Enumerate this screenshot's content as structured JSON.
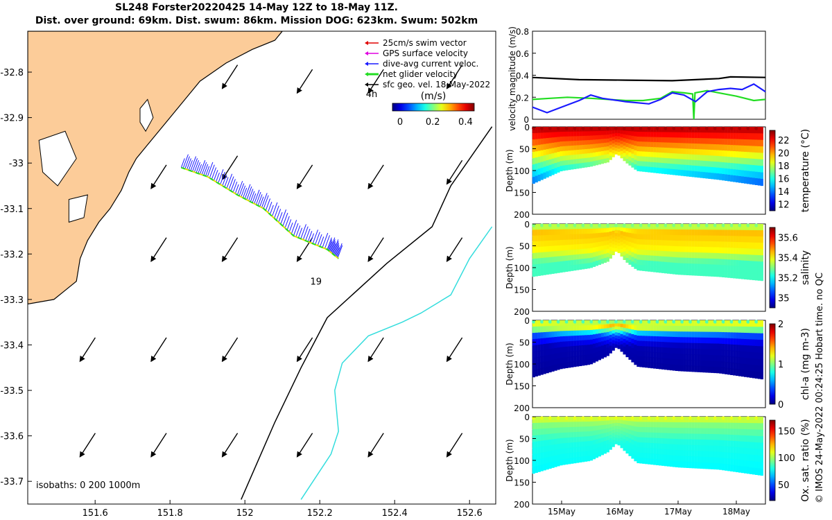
{
  "header": {
    "line1": "SL248 Forster20220425 14-May 12Z to 18-May 11Z.",
    "line2": "Dist. over ground: 69km. Dist. swum: 86km. Mission DOG: 623km. Swum: 502km"
  },
  "chart_data": [
    {
      "type": "map",
      "name": "glider track map",
      "xlim": [
        151.42,
        152.67
      ],
      "ylim": [
        -33.75,
        -32.71
      ],
      "xticks": [
        "151.6",
        "151.8",
        "152",
        "152.2",
        "152.4",
        "152.6"
      ],
      "yticks": [
        "-32.8",
        "-32.9",
        "-33",
        "-33.1",
        "-33.2",
        "-33.3",
        "-33.4",
        "-33.5",
        "-33.6",
        "-33.7"
      ],
      "legend": [
        "25cm/s swim vector",
        "GPS surface velocity",
        "dive-avg current veloc.",
        "net glider velocity",
        "sfc geo. vel. 18-May-2022"
      ],
      "legend_colors": [
        "#e00000",
        "#e000e0",
        "#1a1aff",
        "#22dd22",
        "#000000"
      ],
      "colorbar": {
        "label": "(m/s)",
        "ticks": [
          "0",
          "0.2",
          "0.4"
        ],
        "range": [
          0,
          0.5
        ]
      },
      "annotations": {
        "time_label": "4h",
        "day_label": "19",
        "isobaths": "isobaths: 0   200  1000m"
      },
      "land_color": "#fccc99",
      "track": [
        [
          151.83,
          -33.01
        ],
        [
          151.9,
          -33.03
        ],
        [
          151.98,
          -33.07
        ],
        [
          152.05,
          -33.1
        ],
        [
          152.13,
          -33.16
        ],
        [
          152.22,
          -33.19
        ],
        [
          152.25,
          -33.21
        ]
      ],
      "isobath_200m": [
        [
          152.66,
          -32.92
        ],
        [
          152.55,
          -33.05
        ],
        [
          152.5,
          -33.14
        ],
        [
          152.38,
          -33.22
        ],
        [
          152.22,
          -33.34
        ],
        [
          152.15,
          -33.45
        ],
        [
          152.08,
          -33.57
        ],
        [
          151.99,
          -33.74
        ]
      ],
      "isobath_1000m": [
        [
          152.66,
          -33.14
        ],
        [
          152.6,
          -33.21
        ],
        [
          152.55,
          -33.29
        ],
        [
          152.47,
          -33.33
        ],
        [
          152.42,
          -33.35
        ],
        [
          152.33,
          -33.38
        ],
        [
          152.26,
          -33.44
        ],
        [
          152.24,
          -33.5
        ],
        [
          152.25,
          -33.59
        ],
        [
          152.23,
          -33.64
        ],
        [
          152.19,
          -33.69
        ],
        [
          152.15,
          -33.74
        ]
      ],
      "sfc_vectors": [
        [
          151.96,
          -32.81
        ],
        [
          152.16,
          -32.82
        ],
        [
          152.35,
          -32.82
        ],
        [
          152.56,
          -32.81
        ],
        [
          151.77,
          -33.03
        ],
        [
          151.96,
          -33.01
        ],
        [
          152.16,
          -33.03
        ],
        [
          152.35,
          -33.03
        ],
        [
          152.56,
          -33.02
        ],
        [
          151.77,
          -33.19
        ],
        [
          151.96,
          -33.19
        ],
        [
          152.16,
          -33.19
        ],
        [
          152.35,
          -33.19
        ],
        [
          152.56,
          -33.19
        ],
        [
          151.58,
          -33.41
        ],
        [
          151.77,
          -33.41
        ],
        [
          151.96,
          -33.41
        ],
        [
          152.16,
          -33.41
        ],
        [
          152.35,
          -33.41
        ],
        [
          152.56,
          -33.41
        ],
        [
          151.58,
          -33.62
        ],
        [
          151.77,
          -33.62
        ],
        [
          151.96,
          -33.62
        ],
        [
          152.16,
          -33.62
        ],
        [
          152.35,
          -33.62
        ],
        [
          152.56,
          -33.62
        ]
      ]
    },
    {
      "type": "line",
      "name": "velocity magnitude",
      "ylabel": "velocity magnitude (m/s)",
      "ylim": [
        0,
        0.8
      ],
      "yticks": [
        "0",
        "0.2",
        "0.4",
        "0.6",
        "0.8"
      ],
      "series": [
        {
          "name": "sfc geo. vel.",
          "color": "#000000",
          "values": [
            [
              0,
              0.38
            ],
            [
              0.8,
              0.36
            ],
            [
              1.6,
              0.355
            ],
            [
              2.4,
              0.35
            ],
            [
              3.2,
              0.37
            ],
            [
              3.4,
              0.385
            ],
            [
              4.0,
              0.38
            ]
          ]
        },
        {
          "name": "net glider velocity",
          "color": "#22dd22",
          "values": [
            [
              0,
              0.18
            ],
            [
              0.3,
              0.19
            ],
            [
              0.6,
              0.2
            ],
            [
              1.0,
              0.19
            ],
            [
              1.3,
              0.18
            ],
            [
              1.6,
              0.17
            ],
            [
              1.9,
              0.17
            ],
            [
              2.2,
              0.19
            ],
            [
              2.4,
              0.25
            ],
            [
              2.6,
              0.24
            ],
            [
              2.75,
              0.23
            ],
            [
              2.77,
              0.0
            ],
            [
              2.79,
              0.24
            ],
            [
              3.0,
              0.26
            ],
            [
              3.2,
              0.24
            ],
            [
              3.5,
              0.21
            ],
            [
              3.8,
              0.17
            ],
            [
              4.0,
              0.18
            ]
          ]
        },
        {
          "name": "dive-avg current veloc.",
          "color": "#1a1aff",
          "values": [
            [
              0,
              0.11
            ],
            [
              0.25,
              0.06
            ],
            [
              0.5,
              0.11
            ],
            [
              0.8,
              0.17
            ],
            [
              1.0,
              0.22
            ],
            [
              1.2,
              0.19
            ],
            [
              1.6,
              0.16
            ],
            [
              2.0,
              0.14
            ],
            [
              2.2,
              0.18
            ],
            [
              2.4,
              0.24
            ],
            [
              2.6,
              0.22
            ],
            [
              2.8,
              0.16
            ],
            [
              3.0,
              0.25
            ],
            [
              3.2,
              0.27
            ],
            [
              3.4,
              0.28
            ],
            [
              3.6,
              0.27
            ],
            [
              3.8,
              0.32
            ],
            [
              4.0,
              0.25
            ]
          ]
        }
      ]
    },
    {
      "type": "heatmap",
      "name": "temperature section",
      "ylabel": "Depth (m)",
      "ylim": [
        0,
        200
      ],
      "yticks": [
        "0",
        "50",
        "100",
        "150",
        "200"
      ],
      "colorbar_label": "temperature (°C)",
      "crange": [
        11,
        23.5
      ],
      "colorbar_ticks": [
        "12",
        "14",
        "16",
        "18",
        "20",
        "22"
      ],
      "profile_depth": [
        [
          0,
          130
        ],
        [
          0.5,
          100
        ],
        [
          1.0,
          90
        ],
        [
          1.3,
          80
        ],
        [
          1.45,
          60
        ],
        [
          1.6,
          80
        ],
        [
          1.8,
          100
        ],
        [
          2.5,
          110
        ],
        [
          3.2,
          120
        ],
        [
          4.0,
          135
        ]
      ],
      "layers": [
        [
          0,
          23
        ],
        [
          25,
          21.5
        ],
        [
          60,
          19
        ],
        [
          95,
          16
        ],
        [
          140,
          13
        ]
      ]
    },
    {
      "type": "heatmap",
      "name": "salinity section",
      "ylabel": "Depth (m)",
      "ylim": [
        0,
        200
      ],
      "yticks": [
        "0",
        "50",
        "100",
        "150",
        "200"
      ],
      "colorbar_label": "salinity",
      "crange": [
        34.9,
        35.7
      ],
      "colorbar_ticks": [
        "35",
        "35.2",
        "35.4",
        "35.6"
      ],
      "profile_depth": [
        [
          0,
          120
        ],
        [
          0.5,
          110
        ],
        [
          1.0,
          100
        ],
        [
          1.3,
          85
        ],
        [
          1.45,
          60
        ],
        [
          1.6,
          85
        ],
        [
          1.8,
          105
        ],
        [
          2.5,
          115
        ],
        [
          3.2,
          120
        ],
        [
          4.0,
          130
        ]
      ],
      "layers": [
        [
          0,
          35.3
        ],
        [
          20,
          35.45
        ],
        [
          60,
          35.4
        ],
        [
          90,
          35.25
        ],
        [
          130,
          35.25
        ]
      ]
    },
    {
      "type": "heatmap",
      "name": "chlorophyll section",
      "ylabel": "Depth (m)",
      "ylim": [
        0,
        200
      ],
      "yticks": [
        "0",
        "50",
        "100",
        "150",
        "200"
      ],
      "colorbar_label": "chl-a (mg m-3)",
      "crange": [
        0,
        2
      ],
      "colorbar_ticks": [
        "0",
        "1",
        "2"
      ],
      "profile_depth": [
        [
          0,
          130
        ],
        [
          0.5,
          110
        ],
        [
          1.0,
          100
        ],
        [
          1.3,
          80
        ],
        [
          1.45,
          60
        ],
        [
          1.6,
          80
        ],
        [
          1.8,
          105
        ],
        [
          2.5,
          115
        ],
        [
          3.2,
          120
        ],
        [
          4.0,
          135
        ]
      ],
      "layers": [
        [
          0,
          0.9
        ],
        [
          12,
          1.4
        ],
        [
          35,
          0.4
        ],
        [
          60,
          0.1
        ],
        [
          130,
          0.05
        ]
      ]
    },
    {
      "type": "heatmap",
      "name": "oxygen section",
      "ylabel": "Depth (m)",
      "ylim": [
        0,
        200
      ],
      "yticks": [
        "0",
        "50",
        "100",
        "150",
        "200"
      ],
      "colorbar_label": "Ox. sat. ratio (%)",
      "crange": [
        20,
        170
      ],
      "colorbar_ticks": [
        "50",
        "100",
        "150"
      ],
      "profile_depth": [
        [
          0,
          130
        ],
        [
          0.5,
          110
        ],
        [
          1.0,
          100
        ],
        [
          1.3,
          80
        ],
        [
          1.45,
          60
        ],
        [
          1.6,
          80
        ],
        [
          1.8,
          105
        ],
        [
          2.5,
          115
        ],
        [
          3.2,
          120
        ],
        [
          4.0,
          135
        ]
      ],
      "layers": [
        [
          0,
          110
        ],
        [
          20,
          95
        ],
        [
          60,
          80
        ],
        [
          130,
          75
        ]
      ]
    },
    {
      "type": "axis",
      "name": "time axis",
      "xlim": [
        0,
        4.0
      ],
      "xticks": [
        {
          "label": "15May",
          "value": 0.5
        },
        {
          "label": "16May",
          "value": 1.5
        },
        {
          "label": "17May",
          "value": 2.5
        },
        {
          "label": "18May",
          "value": 3.5
        }
      ]
    }
  ],
  "side_note": "© IMOS 24-May-2022 00:24:25 Hobart time. no QC"
}
